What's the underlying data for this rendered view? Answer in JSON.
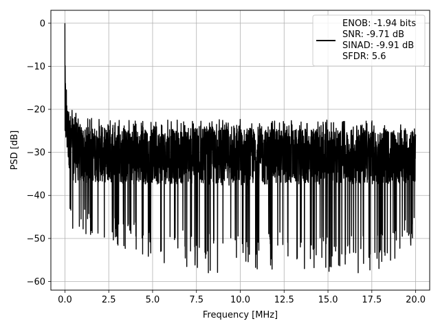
{
  "chart_data": {
    "type": "line",
    "xlabel": "Frequency [MHz]",
    "ylabel": "PSD [dB]",
    "xlim": [
      -0.8,
      20.8
    ],
    "ylim": [
      -62,
      3
    ],
    "x_ticks": [
      0.0,
      2.5,
      5.0,
      7.5,
      10.0,
      12.5,
      15.0,
      17.5,
      20.0
    ],
    "x_tick_labels": [
      "0.0",
      "2.5",
      "5.0",
      "7.5",
      "10.0",
      "12.5",
      "15.0",
      "17.5",
      "20.0"
    ],
    "y_ticks": [
      0,
      -10,
      -20,
      -30,
      -40,
      -50,
      -60
    ],
    "y_tick_labels": [
      "0",
      "−10",
      "−20",
      "−30",
      "−40",
      "−50",
      "−60"
    ],
    "grid": true,
    "legend_position": "top-right",
    "legend_lines": [
      "ENOB: -1.94 bits",
      "SNR: -9.71 dB",
      "SINAD: -9.91 dB",
      "SFDR: 5.6"
    ],
    "series": [
      {
        "color": "#000000",
        "x": [
          0.0,
          0.02,
          0.04,
          0.06,
          0.08,
          0.1,
          0.15,
          0.2,
          0.25,
          0.3,
          0.35,
          0.4,
          0.5,
          0.6,
          0.8,
          1.0,
          1.5,
          2.0,
          3.0,
          5.0,
          7.5,
          10.0,
          12.5,
          15.0,
          17.5,
          20.0
        ],
        "y_upper": [
          0.0,
          -8.0,
          -10.0,
          -12.0,
          -14.0,
          -15.0,
          -16.5,
          -17.5,
          -18.0,
          -18.5,
          -19.0,
          -19.5,
          -20.0,
          -20.5,
          -21.0,
          -21.5,
          -22.0,
          -22.0,
          -22.5,
          -22.5,
          -22.5,
          -22.0,
          -22.5,
          -22.5,
          -22.5,
          -23.0
        ],
        "y_lower": [
          -23.0,
          -28.0,
          -32.0,
          -34.0,
          -36.0,
          -38.0,
          -40.0,
          -43.0,
          -45.0,
          -47.0,
          -48.0,
          -50.0,
          -50.0,
          -50.0,
          -50.0,
          -50.0,
          -50.0,
          -52.0,
          -52.0,
          -55.0,
          -58.0,
          -58.0,
          -57.0,
          -58.0,
          -58.0,
          -52.0
        ],
        "y_median": [
          -23.0,
          -20.0,
          -21.0,
          -22.0,
          -23.0,
          -24.0,
          -25.0,
          -26.0,
          -27.0,
          -28.0,
          -28.5,
          -29.0,
          -29.5,
          -30.0,
          -30.0,
          -30.5,
          -30.5,
          -30.5,
          -31.0,
          -31.0,
          -31.0,
          -31.0,
          -31.0,
          -31.0,
          -31.0,
          -31.0
        ]
      }
    ]
  }
}
